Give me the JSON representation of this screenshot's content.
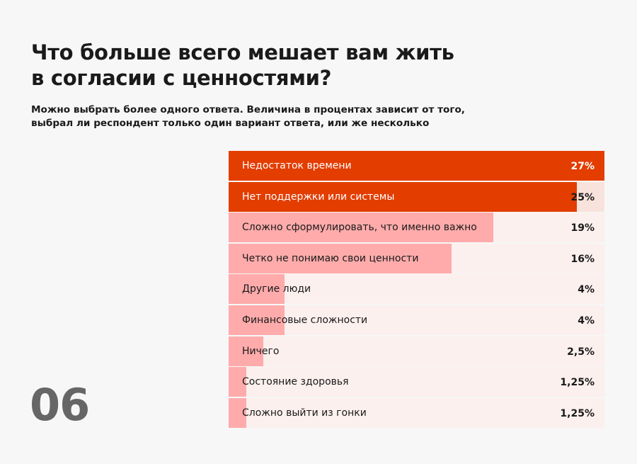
{
  "title": "Что больше всего мешает вам жить в согласии с ценностями?",
  "subtitle": "Можно выбрать более одного ответа. Величина в процентах зависит от того, выбрал ли респондент только один вариант ответа, или же несколько",
  "page_number": "06",
  "colors": {
    "highlight": "#e33d00",
    "bar": "#ffabab",
    "track": "#fbf0ee"
  },
  "chart_data": {
    "type": "bar",
    "orientation": "horizontal",
    "title": "Что больше всего мешает вам жить в согласии с ценностями?",
    "categories": [
      "Недостаток времени",
      "Нет поддержки или системы",
      "Сложно сформулировать, что именно важно",
      "Четко не понимаю свои ценности",
      "Другие люди",
      "Финансовые сложности",
      "Ничего",
      "Состояние здоровья",
      "Сложно выйти из гонки"
    ],
    "values": [
      27,
      25,
      19,
      16,
      4,
      4,
      2.5,
      1.25,
      1.25
    ],
    "value_labels": [
      "27%",
      "25%",
      "19%",
      "16%",
      "4%",
      "4%",
      "2,5%",
      "1,25%",
      "1,25%"
    ],
    "highlighted": [
      0,
      1
    ],
    "xlim": [
      0,
      27
    ]
  }
}
